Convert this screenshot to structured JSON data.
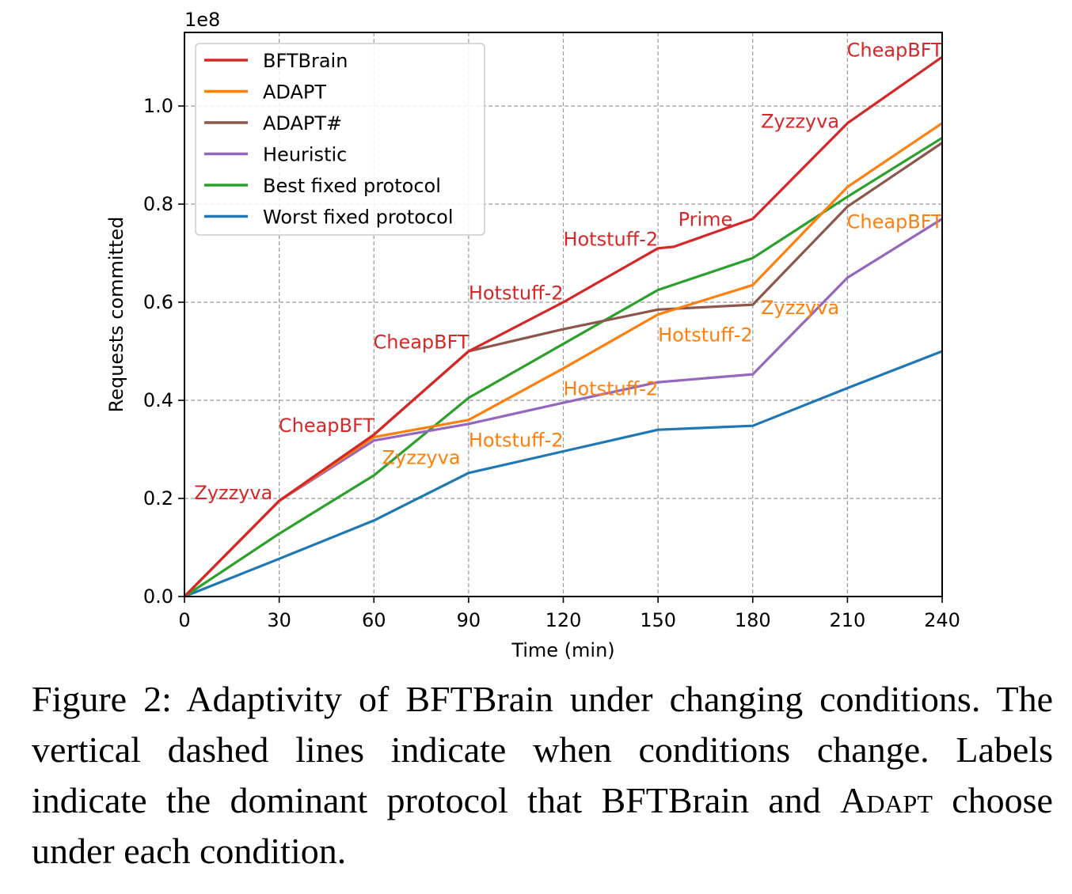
{
  "chart_data": {
    "type": "line",
    "xlabel": "Time (min)",
    "ylabel": "Requests committed",
    "y_multiplier_label": "1e8",
    "xlim": [
      0,
      240
    ],
    "ylim": [
      0,
      1.15
    ],
    "x_ticks": [
      0,
      30,
      60,
      90,
      120,
      150,
      180,
      210,
      240
    ],
    "x_tick_labels": [
      "0",
      "30",
      "60",
      "90",
      "120",
      "150",
      "180",
      "210",
      "240"
    ],
    "y_ticks": [
      0.0,
      0.2,
      0.4,
      0.6,
      0.8,
      1.0
    ],
    "y_tick_labels": [
      "0.0",
      "0.2",
      "0.4",
      "0.6",
      "0.8",
      "1.0"
    ],
    "grid": true,
    "legend_position": "top-left",
    "series": [
      {
        "name": "BFTBrain",
        "color": "#d62728",
        "x": [
          0,
          30,
          60,
          90,
          120,
          150,
          155,
          180,
          210,
          240
        ],
        "y": [
          0.0,
          0.195,
          0.33,
          0.5,
          0.6,
          0.71,
          0.713,
          0.77,
          0.965,
          1.1
        ]
      },
      {
        "name": "ADAPT",
        "color": "#ff7f0e",
        "x": [
          0,
          30,
          60,
          90,
          120,
          150,
          180,
          210,
          240
        ],
        "y": [
          0.0,
          0.195,
          0.325,
          0.36,
          0.465,
          0.575,
          0.635,
          0.835,
          0.965
        ]
      },
      {
        "name": "ADAPT#",
        "color": "#8c564b",
        "x": [
          0,
          30,
          60,
          90,
          120,
          150,
          180,
          210,
          240
        ],
        "y": [
          0.0,
          0.195,
          0.33,
          0.5,
          0.545,
          0.585,
          0.595,
          0.795,
          0.925
        ]
      },
      {
        "name": "Heuristic",
        "color": "#9467bd",
        "x": [
          0,
          30,
          60,
          90,
          120,
          150,
          180,
          210,
          240
        ],
        "y": [
          0.0,
          0.195,
          0.318,
          0.352,
          0.395,
          0.437,
          0.453,
          0.65,
          0.77
        ]
      },
      {
        "name": "Best fixed protocol",
        "color": "#2ca02c",
        "x": [
          0,
          30,
          60,
          90,
          120,
          150,
          180,
          210,
          240
        ],
        "y": [
          0.0,
          0.128,
          0.247,
          0.405,
          0.515,
          0.625,
          0.69,
          0.815,
          0.935
        ]
      },
      {
        "name": "Worst fixed protocol",
        "color": "#1f77b4",
        "x": [
          0,
          30,
          60,
          90,
          120,
          150,
          180,
          210,
          240
        ],
        "y": [
          0.0,
          0.077,
          0.155,
          0.252,
          0.296,
          0.34,
          0.348,
          0.425,
          0.5
        ]
      }
    ],
    "annotations": [
      {
        "text": "Zyzzyva",
        "x": 15.5,
        "y": 0.213,
        "color": "#d62728"
      },
      {
        "text": "CheapBFT",
        "x": 45,
        "y": 0.35,
        "color": "#d62728"
      },
      {
        "text": "CheapBFT",
        "x": 75,
        "y": 0.52,
        "color": "#d62728"
      },
      {
        "text": "Hotstuff-2",
        "x": 105,
        "y": 0.62,
        "color": "#d62728"
      },
      {
        "text": "Hotstuff-2",
        "x": 135,
        "y": 0.73,
        "color": "#d62728"
      },
      {
        "text": "Prime",
        "x": 165,
        "y": 0.77,
        "color": "#d62728"
      },
      {
        "text": "Zyzzyva",
        "x": 195,
        "y": 0.97,
        "color": "#d62728"
      },
      {
        "text": "CheapBFT",
        "x": 225,
        "y": 1.115,
        "color": "#d62728"
      },
      {
        "text": "Zyzzyva",
        "x": 75,
        "y": 0.285,
        "color": "#ff7f0e"
      },
      {
        "text": "Hotstuff-2",
        "x": 105,
        "y": 0.32,
        "color": "#ff7f0e"
      },
      {
        "text": "Hotstuff-2",
        "x": 135,
        "y": 0.425,
        "color": "#ff7f0e"
      },
      {
        "text": "Hotstuff-2",
        "x": 165,
        "y": 0.535,
        "color": "#ff7f0e"
      },
      {
        "text": "Zyzzyva",
        "x": 195,
        "y": 0.59,
        "color": "#ff7f0e"
      },
      {
        "text": "CheapBFT",
        "x": 225,
        "y": 0.765,
        "color": "#ff7f0e"
      }
    ]
  },
  "caption": {
    "part1": "Figure 2: Adaptivity of BFTBrain under changing conditions. The vertical dashed lines indicate when conditions change. Labels indicate the dominant protocol that BFTBrain and ",
    "adapt": "Adapt",
    "part2": " choose under each condition."
  }
}
